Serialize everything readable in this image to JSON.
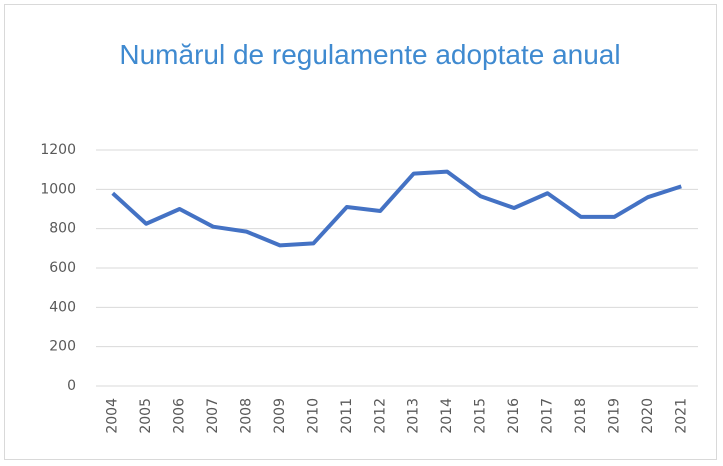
{
  "chart_data": {
    "type": "line",
    "title": "Numărul de regulamente adoptate anual",
    "categories": [
      "2004",
      "2005",
      "2006",
      "2007",
      "2008",
      "2009",
      "2010",
      "2011",
      "2012",
      "2013",
      "2014",
      "2015",
      "2016",
      "2017",
      "2018",
      "2019",
      "2020",
      "2021"
    ],
    "series": [
      {
        "color": "#4472c4",
        "values": [
          980,
          825,
          900,
          810,
          785,
          715,
          725,
          910,
          890,
          1080,
          1090,
          965,
          905,
          980,
          860,
          860,
          960,
          1015
        ]
      }
    ],
    "ylim": [
      0,
      1200
    ],
    "yticks": [
      0,
      200,
      400,
      600,
      800,
      1000,
      1200
    ],
    "grid": true
  }
}
